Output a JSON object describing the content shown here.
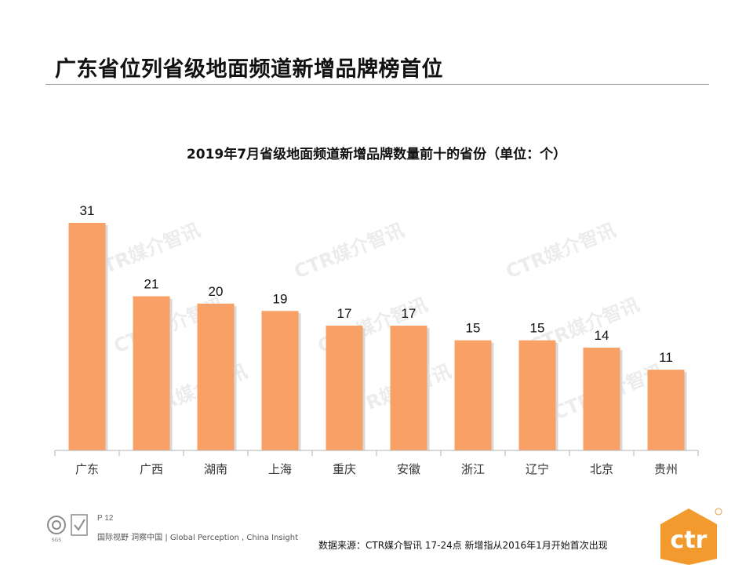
{
  "slide": {
    "title": "广东省位列省级地面频道新增品牌榜首位",
    "page_number": "P 12",
    "tagline": "国际视野 洞察中国 | Global Perception , China Insight",
    "source_note": "数据来源：CTR媒介智讯    17-24点   新增指从2016年1月开始首次出现",
    "watermark_text": "CTR媒介智讯",
    "logo_text": "ctr",
    "cert_text": "SGS"
  },
  "colors": {
    "bar": "#F9A066",
    "bar_shadow": "#d9d9d9",
    "axis": "#b3b3b3",
    "logo_orange": "#F39A2E"
  },
  "chart_data": {
    "type": "bar",
    "title": "2019年7月省级地面频道新增品牌数量前十的省份（单位：个）",
    "xlabel": "",
    "ylabel": "",
    "categories": [
      "广东",
      "广西",
      "湖南",
      "上海",
      "重庆",
      "安徽",
      "浙江",
      "辽宁",
      "北京",
      "贵州"
    ],
    "values": [
      31,
      21,
      20,
      19,
      17,
      17,
      15,
      15,
      14,
      11
    ],
    "ylim": [
      0,
      31
    ],
    "grid": false,
    "data_labels": true
  }
}
